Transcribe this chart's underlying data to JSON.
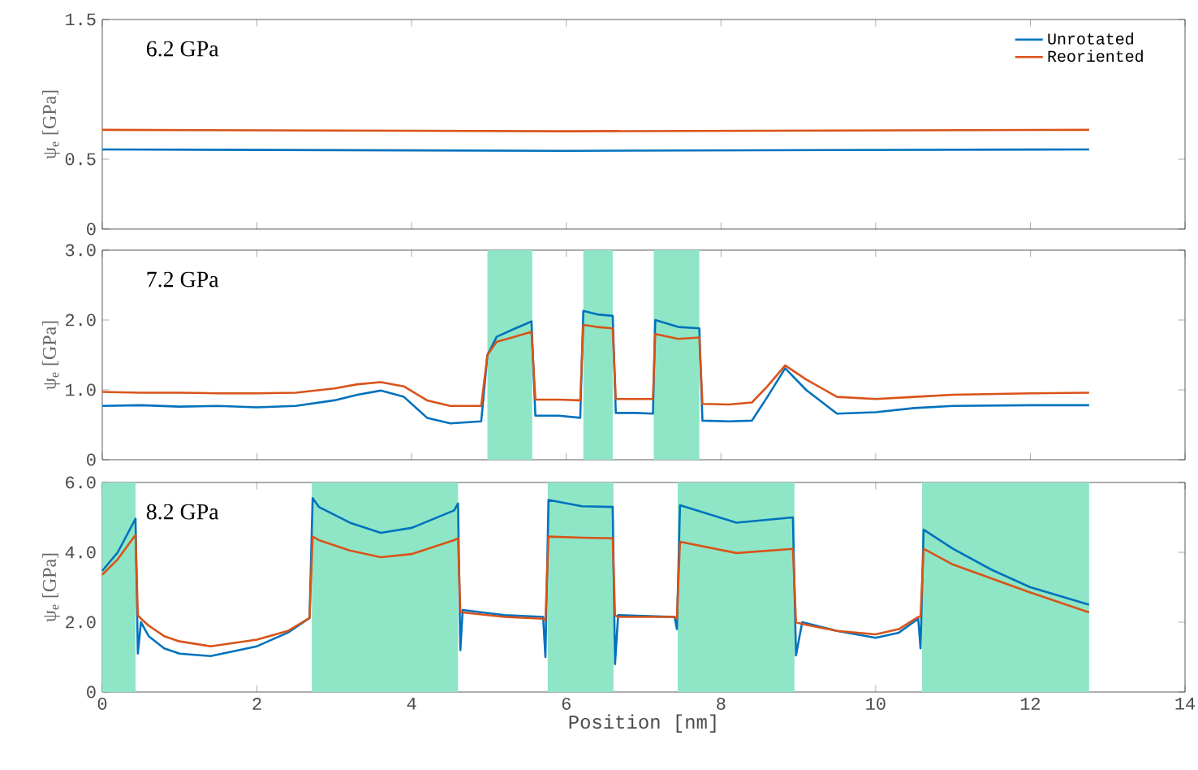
{
  "chart_data": [
    {
      "type": "line",
      "annotations": [
        "6.2 GPa"
      ],
      "ylabel": "ψ$_{e}$ [GPa]",
      "xlim": [
        0,
        14
      ],
      "xticks": [
        0,
        2,
        4,
        6,
        8,
        10,
        12,
        14
      ],
      "ylim": [
        0,
        1.5
      ],
      "yticks": [
        0,
        0.5,
        1.5
      ],
      "tick_labels": "y",
      "legend": "top right",
      "series": [
        {
          "name": "Unrotated",
          "color": "#0072bd",
          "x": [
            0,
            6,
            12.76
          ],
          "values": [
            0.57,
            0.56,
            0.57
          ]
        },
        {
          "name": "Reoriented",
          "color": "#d95319",
          "x": [
            0,
            6,
            12.76
          ],
          "values": [
            0.71,
            0.7,
            0.71
          ]
        }
      ]
    },
    {
      "type": "line",
      "annotations": [
        "7.2 GPa"
      ],
      "ylabel": "ψ$_{e}$ [GPa]",
      "xlim": [
        0,
        14
      ],
      "xticks": [
        0,
        2,
        4,
        6,
        8,
        10,
        12,
        14
      ],
      "ylim": [
        0,
        3
      ],
      "yticks": [
        0,
        {
          "value": 1,
          "label": "1.0"
        },
        {
          "value": 2,
          "label": "2.0"
        },
        {
          "value": 3,
          "label": "3.0"
        }
      ],
      "tick_labels": "y",
      "bands": [
        {
          "axis": "x",
          "from": 4.98,
          "to": 5.56,
          "color": "#8ee6c6"
        },
        {
          "axis": "x",
          "from": 6.22,
          "to": 6.6,
          "color": "#8ee6c6"
        },
        {
          "axis": "x",
          "from": 7.13,
          "to": 7.72,
          "color": "#8ee6c6"
        }
      ],
      "series": [
        {
          "color": "#0072bd",
          "x": [
            0,
            0.5,
            1,
            1.5,
            2,
            2.5,
            3,
            3.3,
            3.6,
            3.9,
            4.2,
            4.5,
            4.9,
            4.98,
            5.1,
            5.3,
            5.55,
            5.6,
            5.9,
            6.18,
            6.22,
            6.4,
            6.6,
            6.64,
            6.9,
            7.12,
            7.15,
            7.45,
            7.72,
            7.76,
            8.1,
            8.4,
            8.6,
            8.83,
            9.1,
            9.5,
            10,
            10.5,
            11,
            12,
            12.76
          ],
          "values": [
            0.77,
            0.78,
            0.76,
            0.77,
            0.75,
            0.77,
            0.85,
            0.93,
            0.99,
            0.9,
            0.6,
            0.52,
            0.55,
            1.5,
            1.76,
            1.86,
            1.98,
            0.63,
            0.63,
            0.6,
            2.13,
            2.08,
            2.06,
            0.67,
            0.67,
            0.66,
            2.0,
            1.9,
            1.88,
            0.56,
            0.55,
            0.56,
            0.9,
            1.31,
            1.0,
            0.66,
            0.68,
            0.74,
            0.77,
            0.78,
            0.78
          ]
        },
        {
          "color": "#d95319",
          "x": [
            0,
            0.5,
            1,
            1.5,
            2,
            2.5,
            3,
            3.3,
            3.6,
            3.9,
            4.2,
            4.5,
            4.9,
            4.98,
            5.1,
            5.3,
            5.55,
            5.6,
            5.9,
            6.18,
            6.22,
            6.4,
            6.6,
            6.64,
            6.9,
            7.12,
            7.15,
            7.45,
            7.72,
            7.76,
            8.1,
            8.4,
            8.6,
            8.83,
            9.1,
            9.5,
            10,
            10.5,
            11,
            12,
            12.76
          ],
          "values": [
            0.97,
            0.96,
            0.96,
            0.95,
            0.95,
            0.96,
            1.02,
            1.08,
            1.11,
            1.05,
            0.85,
            0.77,
            0.77,
            1.5,
            1.69,
            1.75,
            1.83,
            0.86,
            0.86,
            0.85,
            1.93,
            1.9,
            1.88,
            0.87,
            0.87,
            0.87,
            1.8,
            1.73,
            1.75,
            0.8,
            0.79,
            0.82,
            1.05,
            1.35,
            1.15,
            0.9,
            0.87,
            0.9,
            0.93,
            0.95,
            0.96
          ]
        }
      ]
    },
    {
      "type": "line",
      "annotations": [
        "8.2 GPa"
      ],
      "xlabel": "Position [nm]",
      "ylabel": "ψ$_{e}$ [GPa]",
      "xlim": [
        0,
        14
      ],
      "xticks": [
        0,
        2,
        4,
        6,
        8,
        10,
        12,
        14
      ],
      "ylim": [
        0,
        6
      ],
      "yticks": [
        0,
        {
          "value": 2,
          "label": "2.0"
        },
        {
          "value": 4,
          "label": "4.0"
        },
        {
          "value": 6,
          "label": "6.0"
        }
      ],
      "bands": [
        {
          "axis": "x",
          "from": 0,
          "to": 0.43,
          "color": "#8ee6c6"
        },
        {
          "axis": "x",
          "from": 2.71,
          "to": 4.6,
          "color": "#8ee6c6"
        },
        {
          "axis": "x",
          "from": 5.76,
          "to": 6.61,
          "color": "#8ee6c6"
        },
        {
          "axis": "x",
          "from": 7.44,
          "to": 8.95,
          "color": "#8ee6c6"
        },
        {
          "axis": "x",
          "from": 10.6,
          "to": 12.76,
          "color": "#8ee6c6"
        }
      ],
      "series": [
        {
          "color": "#0072bd",
          "x": [
            0,
            0.2,
            0.43,
            0.46,
            0.5,
            0.6,
            0.8,
            1.0,
            1.4,
            2.0,
            2.4,
            2.68,
            2.72,
            2.8,
            3.2,
            3.6,
            4.0,
            4.55,
            4.6,
            4.63,
            4.66,
            5.2,
            5.7,
            5.73,
            5.77,
            6.2,
            6.6,
            6.63,
            6.67,
            7.0,
            7.4,
            7.43,
            7.47,
            8.2,
            8.93,
            8.97,
            9.05,
            9.5,
            10,
            10.3,
            10.55,
            10.58,
            10.62,
            11,
            11.5,
            12,
            12.76
          ],
          "values": [
            3.47,
            4.0,
            4.96,
            1.1,
            2.0,
            1.6,
            1.25,
            1.1,
            1.03,
            1.31,
            1.7,
            2.12,
            5.55,
            5.3,
            4.85,
            4.56,
            4.7,
            5.2,
            5.4,
            1.2,
            2.35,
            2.2,
            2.15,
            1.0,
            5.5,
            5.32,
            5.3,
            0.8,
            2.2,
            null,
            2.15,
            1.8,
            5.35,
            4.85,
            5.0,
            1.05,
            2.0,
            1.75,
            1.55,
            1.7,
            2.1,
            1.25,
            4.65,
            4.1,
            3.5,
            3.0,
            2.5
          ]
        },
        {
          "color": "#d95319",
          "x": [
            0,
            0.2,
            0.43,
            0.46,
            0.5,
            0.6,
            0.8,
            1.0,
            1.4,
            2.0,
            2.4,
            2.68,
            2.72,
            2.8,
            3.2,
            3.6,
            4.0,
            4.55,
            4.6,
            4.63,
            4.66,
            5.2,
            5.7,
            5.73,
            5.77,
            6.2,
            6.6,
            6.63,
            6.67,
            7.0,
            7.4,
            7.43,
            7.47,
            8.2,
            8.93,
            8.97,
            9.05,
            9.5,
            10,
            10.3,
            10.55,
            10.58,
            10.62,
            11,
            11.5,
            12,
            12.76
          ],
          "values": [
            3.36,
            3.8,
            4.5,
            2.2,
            2.1,
            1.9,
            1.6,
            1.45,
            1.31,
            1.5,
            1.75,
            2.12,
            4.45,
            4.35,
            4.05,
            3.86,
            3.95,
            4.35,
            4.4,
            2.3,
            2.28,
            2.15,
            2.1,
            2.05,
            4.45,
            4.42,
            4.4,
            2.2,
            2.15,
            2.15,
            2.15,
            2.1,
            4.3,
            3.98,
            4.1,
            2.0,
            1.95,
            1.75,
            1.65,
            1.8,
            2.15,
            2.15,
            4.1,
            3.65,
            3.25,
            2.85,
            2.28
          ]
        }
      ]
    }
  ]
}
